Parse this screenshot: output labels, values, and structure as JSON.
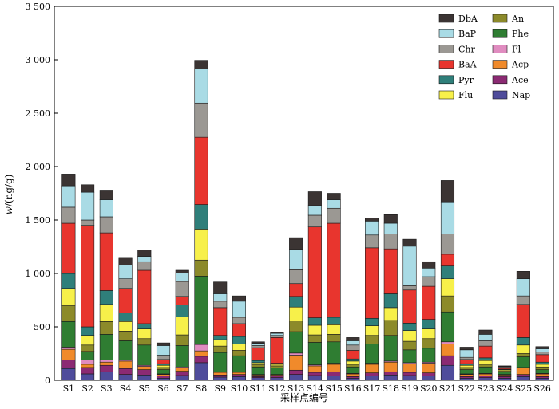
{
  "chart_data": {
    "type": "bar",
    "stacked": true,
    "xlabel": "采样点编号",
    "ylabel": "w/(ng/g)",
    "ylim": [
      0,
      3500
    ],
    "yticks": [
      0,
      500,
      1000,
      1500,
      2000,
      2500,
      3000,
      3500
    ],
    "ytick_labels": [
      "0",
      "500",
      "1 000",
      "1 500",
      "2 000",
      "2 500",
      "3 000",
      "3 500"
    ],
    "grid": false,
    "legend_position": "top-right",
    "legend_order": [
      "DbA",
      "An",
      "BaP",
      "Phe",
      "Chr",
      "Fl",
      "BaA",
      "Acp",
      "Pyr",
      "Ace",
      "Flu",
      "Nap"
    ],
    "categories": [
      "S1",
      "S2",
      "S3",
      "S4",
      "S5",
      "S6",
      "S7",
      "S8",
      "S9",
      "S10",
      "S11",
      "S12",
      "S13",
      "S14",
      "S15",
      "S16",
      "S17",
      "S18",
      "S19",
      "S20",
      "S21",
      "S22",
      "S23",
      "S24",
      "S25",
      "S26"
    ],
    "series": [
      {
        "name": "Nap",
        "color": "#4f4c9b",
        "values": [
          110,
          60,
          80,
          55,
          50,
          20,
          45,
          165,
          30,
          35,
          25,
          25,
          55,
          45,
          40,
          20,
          40,
          50,
          45,
          40,
          140,
          20,
          25,
          20,
          35,
          20
        ]
      },
      {
        "name": "Ace",
        "color": "#8b2a73",
        "values": [
          80,
          60,
          60,
          55,
          50,
          20,
          40,
          60,
          20,
          20,
          10,
          15,
          40,
          30,
          40,
          15,
          30,
          30,
          30,
          30,
          90,
          15,
          15,
          15,
          20,
          15
        ]
      },
      {
        "name": "Acp",
        "color": "#f08a2b",
        "values": [
          100,
          30,
          30,
          70,
          30,
          15,
          30,
          50,
          25,
          20,
          15,
          10,
          140,
          60,
          70,
          25,
          80,
          90,
          80,
          90,
          110,
          20,
          20,
          15,
          60,
          25
        ]
      },
      {
        "name": "Fl",
        "color": "#e08cc0",
        "values": [
          20,
          40,
          20,
          10,
          10,
          5,
          10,
          60,
          5,
          5,
          5,
          5,
          20,
          10,
          10,
          5,
          10,
          10,
          10,
          10,
          20,
          5,
          5,
          5,
          5,
          5
        ]
      },
      {
        "name": "Phe",
        "color": "#2f7d32",
        "values": [
          240,
          80,
          240,
          180,
          190,
          40,
          200,
          640,
          180,
          150,
          70,
          60,
          200,
          210,
          200,
          60,
          180,
          240,
          120,
          130,
          280,
          40,
          60,
          25,
          100,
          35
        ]
      },
      {
        "name": "An",
        "color": "#8c8a2a",
        "values": [
          150,
          60,
          120,
          90,
          60,
          20,
          100,
          150,
          60,
          50,
          20,
          20,
          100,
          70,
          70,
          25,
          80,
          140,
          80,
          90,
          150,
          20,
          25,
          10,
          30,
          25
        ]
      },
      {
        "name": "Flu",
        "color": "#f7f04a",
        "values": [
          160,
          90,
          160,
          90,
          90,
          20,
          170,
          290,
          60,
          60,
          20,
          15,
          130,
          90,
          90,
          30,
          90,
          120,
          100,
          90,
          160,
          20,
          35,
          10,
          80,
          25
        ]
      },
      {
        "name": "Pyr",
        "color": "#2f7f7a",
        "values": [
          140,
          80,
          130,
          80,
          50,
          15,
          110,
          230,
          40,
          70,
          20,
          10,
          100,
          70,
          70,
          20,
          70,
          130,
          70,
          90,
          120,
          15,
          25,
          5,
          70,
          20
        ]
      },
      {
        "name": "BaA",
        "color": "#e8352e",
        "values": [
          470,
          950,
          540,
          230,
          500,
          40,
          80,
          630,
          260,
          120,
          120,
          240,
          120,
          850,
          880,
          80,
          660,
          420,
          310,
          310,
          110,
          40,
          110,
          10,
          310,
          70
        ]
      },
      {
        "name": "Chr",
        "color": "#9b9893",
        "values": [
          150,
          50,
          150,
          90,
          80,
          40,
          140,
          320,
          60,
          60,
          20,
          20,
          130,
          110,
          140,
          50,
          120,
          140,
          40,
          90,
          190,
          20,
          50,
          10,
          80,
          25
        ]
      },
      {
        "name": "BaP",
        "color": "#a9dbe5",
        "values": [
          200,
          260,
          160,
          130,
          50,
          90,
          80,
          320,
          70,
          150,
          20,
          20,
          190,
          90,
          80,
          40,
          130,
          100,
          370,
          80,
          300,
          70,
          60,
          5,
          160,
          30
        ]
      },
      {
        "name": "DbA",
        "color": "#3b3433",
        "values": [
          110,
          70,
          90,
          70,
          60,
          25,
          25,
          80,
          110,
          50,
          15,
          10,
          110,
          130,
          60,
          30,
          30,
          80,
          65,
          60,
          200,
          25,
          40,
          5,
          70,
          20
        ]
      }
    ]
  }
}
